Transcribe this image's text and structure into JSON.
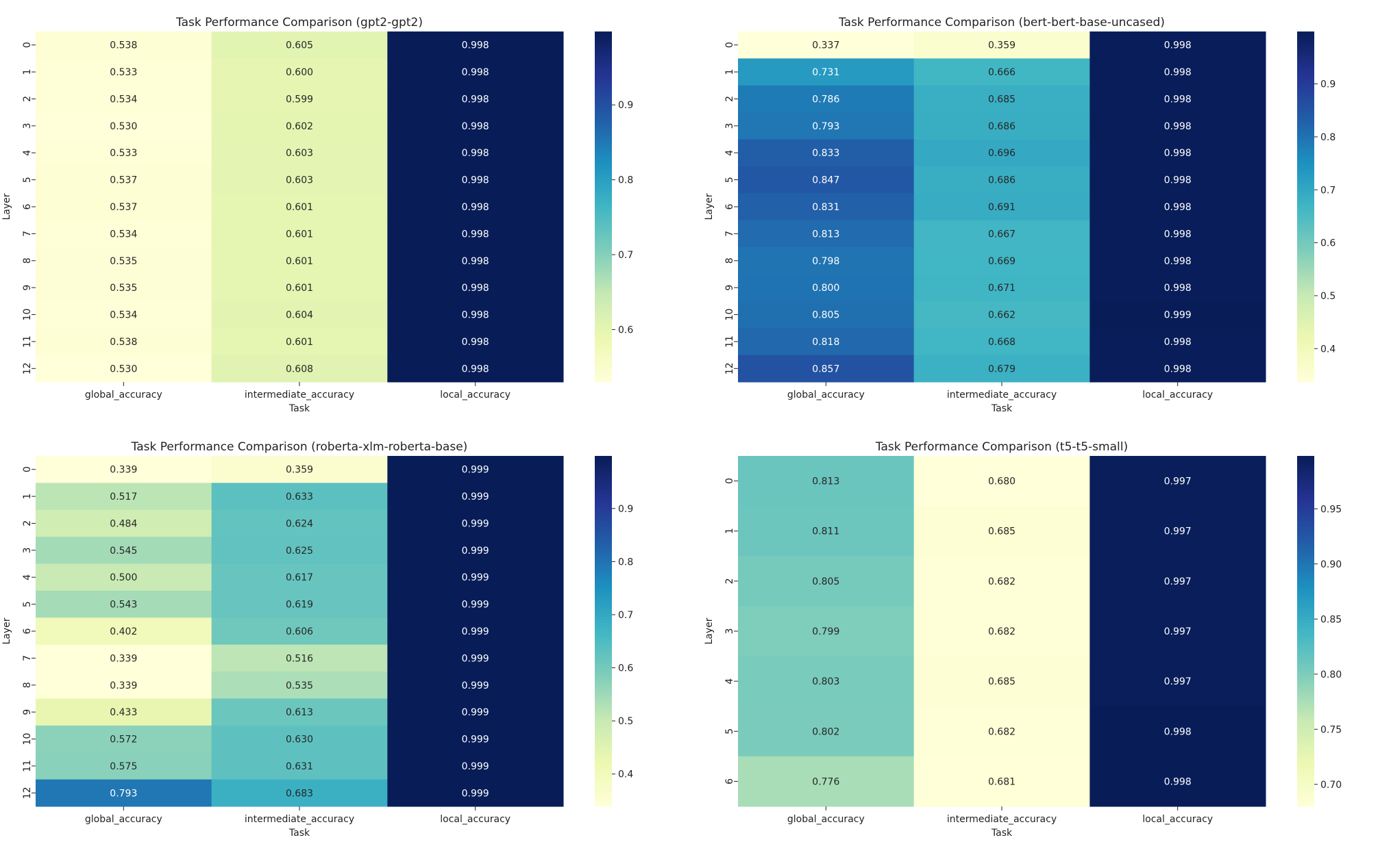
{
  "chart_data": [
    {
      "type": "heatmap",
      "title": "Task Performance Comparison (gpt2-gpt2)",
      "xlabel": "Task",
      "ylabel": "Layer",
      "columns": [
        "global_accuracy",
        "intermediate_accuracy",
        "local_accuracy"
      ],
      "rows": [
        "0",
        "1",
        "2",
        "3",
        "4",
        "5",
        "6",
        "7",
        "8",
        "9",
        "10",
        "11",
        "12"
      ],
      "values": [
        [
          0.538,
          0.605,
          0.998
        ],
        [
          0.533,
          0.6,
          0.998
        ],
        [
          0.534,
          0.599,
          0.998
        ],
        [
          0.53,
          0.602,
          0.998
        ],
        [
          0.533,
          0.603,
          0.998
        ],
        [
          0.537,
          0.603,
          0.998
        ],
        [
          0.537,
          0.601,
          0.998
        ],
        [
          0.534,
          0.601,
          0.998
        ],
        [
          0.535,
          0.601,
          0.998
        ],
        [
          0.535,
          0.601,
          0.998
        ],
        [
          0.534,
          0.604,
          0.998
        ],
        [
          0.538,
          0.601,
          0.998
        ],
        [
          0.53,
          0.608,
          0.998
        ]
      ],
      "vmin": 0.53,
      "vmax": 0.998,
      "colorbar_ticks": [
        0.6,
        0.7,
        0.8,
        0.9
      ],
      "colormap": "YlGnBu"
    },
    {
      "type": "heatmap",
      "title": "Task Performance Comparison (bert-bert-base-uncased)",
      "xlabel": "Task",
      "ylabel": "Layer",
      "columns": [
        "global_accuracy",
        "intermediate_accuracy",
        "local_accuracy"
      ],
      "rows": [
        "0",
        "1",
        "2",
        "3",
        "4",
        "5",
        "6",
        "7",
        "8",
        "9",
        "10",
        "11",
        "12"
      ],
      "values": [
        [
          0.337,
          0.359,
          0.998
        ],
        [
          0.731,
          0.666,
          0.998
        ],
        [
          0.786,
          0.685,
          0.998
        ],
        [
          0.793,
          0.686,
          0.998
        ],
        [
          0.833,
          0.696,
          0.998
        ],
        [
          0.847,
          0.686,
          0.998
        ],
        [
          0.831,
          0.691,
          0.998
        ],
        [
          0.813,
          0.667,
          0.998
        ],
        [
          0.798,
          0.669,
          0.998
        ],
        [
          0.8,
          0.671,
          0.998
        ],
        [
          0.805,
          0.662,
          0.999
        ],
        [
          0.818,
          0.668,
          0.998
        ],
        [
          0.857,
          0.679,
          0.998
        ]
      ],
      "vmin": 0.337,
      "vmax": 0.999,
      "colorbar_ticks": [
        0.4,
        0.5,
        0.6,
        0.7,
        0.8,
        0.9
      ],
      "colormap": "YlGnBu"
    },
    {
      "type": "heatmap",
      "title": "Task Performance Comparison (roberta-xlm-roberta-base)",
      "xlabel": "Task",
      "ylabel": "Layer",
      "columns": [
        "global_accuracy",
        "intermediate_accuracy",
        "local_accuracy"
      ],
      "rows": [
        "0",
        "1",
        "2",
        "3",
        "4",
        "5",
        "6",
        "7",
        "8",
        "9",
        "10",
        "11",
        "12"
      ],
      "values": [
        [
          0.339,
          0.359,
          0.999
        ],
        [
          0.517,
          0.633,
          0.999
        ],
        [
          0.484,
          0.624,
          0.999
        ],
        [
          0.545,
          0.625,
          0.999
        ],
        [
          0.5,
          0.617,
          0.999
        ],
        [
          0.543,
          0.619,
          0.999
        ],
        [
          0.402,
          0.606,
          0.999
        ],
        [
          0.339,
          0.516,
          0.999
        ],
        [
          0.339,
          0.535,
          0.999
        ],
        [
          0.433,
          0.613,
          0.999
        ],
        [
          0.572,
          0.63,
          0.999
        ],
        [
          0.575,
          0.631,
          0.999
        ],
        [
          0.793,
          0.683,
          0.999
        ]
      ],
      "vmin": 0.339,
      "vmax": 0.999,
      "colorbar_ticks": [
        0.4,
        0.5,
        0.6,
        0.7,
        0.8,
        0.9
      ],
      "colormap": "YlGnBu"
    },
    {
      "type": "heatmap",
      "title": "Task Performance Comparison (t5-t5-small)",
      "xlabel": "Task",
      "ylabel": "Layer",
      "columns": [
        "global_accuracy",
        "intermediate_accuracy",
        "local_accuracy"
      ],
      "rows": [
        "0",
        "1",
        "2",
        "3",
        "4",
        "5",
        "6"
      ],
      "values": [
        [
          0.813,
          0.68,
          0.997
        ],
        [
          0.811,
          0.685,
          0.997
        ],
        [
          0.805,
          0.682,
          0.997
        ],
        [
          0.799,
          0.682,
          0.997
        ],
        [
          0.803,
          0.685,
          0.997
        ],
        [
          0.802,
          0.682,
          0.998
        ],
        [
          0.776,
          0.681,
          0.998
        ]
      ],
      "vmin": 0.68,
      "vmax": 0.998,
      "colorbar_ticks": [
        0.7,
        0.75,
        0.8,
        0.85,
        0.9,
        0.95
      ],
      "colormap": "YlGnBu"
    }
  ]
}
